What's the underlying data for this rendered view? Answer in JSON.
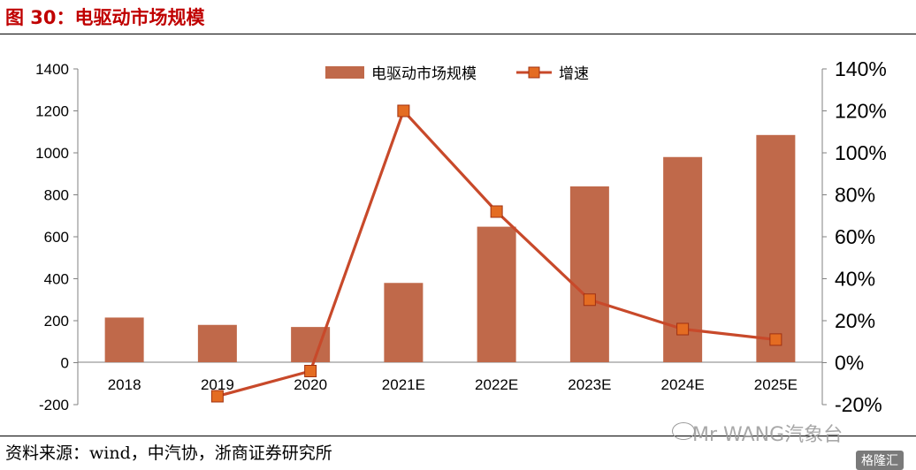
{
  "figure": {
    "title": "图 30：电驱动市场规模",
    "source": "资料来源：wind，中汽协，浙商证券研究所",
    "watermark": "Mr WANG汽象台",
    "badge": "格隆汇"
  },
  "chart_data": {
    "type": "bar",
    "categories": [
      "2018",
      "2019",
      "2020",
      "2021E",
      "2022E",
      "2023E",
      "2024E",
      "2025E"
    ],
    "series": [
      {
        "name": "电驱动市场规模",
        "type": "bar",
        "axis": "left",
        "color": "#c0694a",
        "values": [
          215,
          180,
          170,
          380,
          648,
          840,
          980,
          1085
        ]
      },
      {
        "name": "增速",
        "type": "line",
        "axis": "right",
        "color": "#c8492a",
        "marker_color": "#e46c22",
        "values": [
          null,
          -16,
          -4,
          120,
          72,
          30,
          16,
          11
        ]
      }
    ],
    "left_axis": {
      "ticks": [
        "1400",
        "1200",
        "1000",
        "800",
        "600",
        "400",
        "200",
        "0",
        "-200"
      ],
      "ylim": [
        -200,
        1400
      ]
    },
    "right_axis": {
      "ticks": [
        "140%",
        "120%",
        "100%",
        "80%",
        "60%",
        "40%",
        "20%",
        "0%",
        "-20%"
      ],
      "ylim": [
        -20,
        140
      ]
    },
    "legend": "top-center",
    "grid": false
  }
}
